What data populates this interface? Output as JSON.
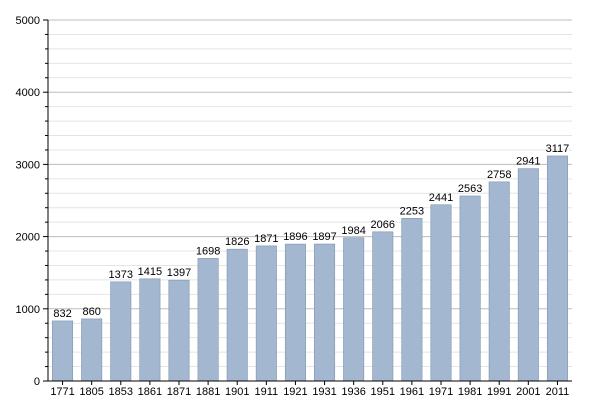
{
  "chart_data": {
    "type": "bar",
    "categories": [
      "1771",
      "1805",
      "1853",
      "1861",
      "1871",
      "1881",
      "1901",
      "1911",
      "1921",
      "1931",
      "1936",
      "1951",
      "1961",
      "1971",
      "1981",
      "1991",
      "2001",
      "2011"
    ],
    "values": [
      832,
      860,
      1373,
      1415,
      1397,
      1698,
      1826,
      1871,
      1896,
      1897,
      1984,
      2066,
      2253,
      2441,
      2563,
      2758,
      2941,
      3117
    ],
    "value_labels": [
      "832",
      "860",
      "1373",
      "1415",
      "1397",
      "1698",
      "1826",
      "1871",
      "1896",
      "1897",
      "1984",
      "2066",
      "2253",
      "2441",
      "2563",
      "2758",
      "2941",
      "3117"
    ],
    "y_ticks": [
      0,
      1000,
      2000,
      3000,
      4000,
      5000
    ],
    "y_tick_labels": [
      "0",
      "1000",
      "2000",
      "3000",
      "4000",
      "5000"
    ],
    "ylim": [
      0,
      5000
    ],
    "minor_grid_step": 200,
    "grid": true,
    "legend": "none",
    "title": "",
    "xlabel": "",
    "ylabel": "",
    "colors": {
      "bar_fill": "#a3b8d0",
      "bar_stroke": "#7c94ad",
      "grid_major": "#bdbdbd",
      "grid_minor": "#e4e4e4"
    }
  }
}
